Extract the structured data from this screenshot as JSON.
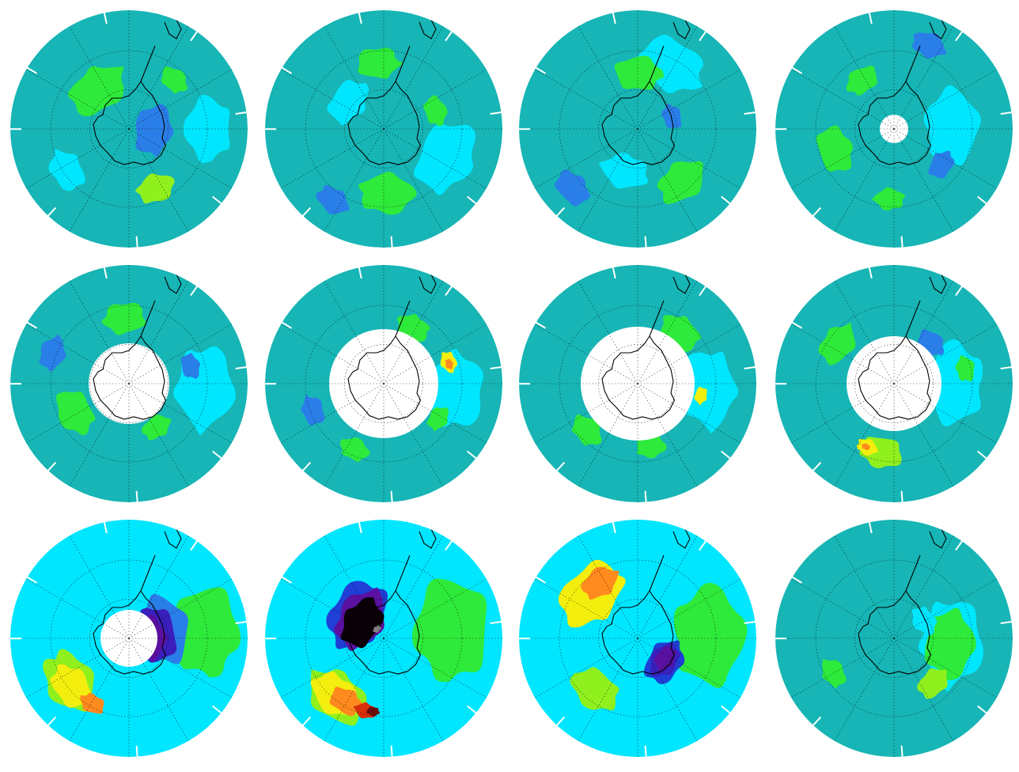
{
  "figure": {
    "rows": 3,
    "cols": 4,
    "projection": "south-polar-stereographic",
    "colors": {
      "teal": "#17b5b5",
      "cyan": "#00e6ff",
      "blue": "#2a7ee8",
      "deep_blue": "#1f3fd6",
      "indigo": "#3a1fbd",
      "purple": "#5a10a0",
      "black": "#0a0008",
      "gray": "#808080",
      "green": "#2eea3a",
      "lime": "#8ff01e",
      "yellow": "#f4ee0e",
      "orange": "#ff8a1e",
      "red": "#d8300a",
      "dark_red": "#6a0a0a",
      "polar_night": "#ffffff",
      "coast": "#000000"
    },
    "panels": [
      {
        "row": 1,
        "col": 1,
        "base": "teal",
        "polar_cap": 0,
        "features": [
          [
            "cyan",
            0.7,
            0.0,
            0.5,
            0.3
          ],
          [
            "green",
            0.45,
            -2.2,
            0.5,
            0.28
          ],
          [
            "blue",
            0.22,
            0.2,
            0.5,
            0.24
          ],
          [
            "lime",
            0.55,
            1.2,
            0.5,
            0.18
          ],
          [
            "cyan",
            0.62,
            2.6,
            0.5,
            0.2
          ],
          [
            "green",
            0.55,
            -0.8,
            0.5,
            0.14
          ]
        ]
      },
      {
        "row": 1,
        "col": 2,
        "base": "teal",
        "polar_cap": 0,
        "features": [
          [
            "cyan",
            0.6,
            0.5,
            0.5,
            0.35
          ],
          [
            "green",
            0.55,
            1.6,
            0.5,
            0.26
          ],
          [
            "green",
            0.55,
            -1.6,
            0.5,
            0.2
          ],
          [
            "green",
            0.45,
            -0.3,
            0.5,
            0.14
          ],
          [
            "blue",
            0.72,
            2.2,
            0.5,
            0.16
          ],
          [
            "cyan",
            0.35,
            -2.5,
            0.5,
            0.22
          ]
        ]
      },
      {
        "row": 1,
        "col": 3,
        "base": "teal",
        "polar_cap": 0,
        "features": [
          [
            "cyan",
            0.6,
            -1.0,
            0.5,
            0.32
          ],
          [
            "green",
            0.45,
            -1.5,
            0.5,
            0.22
          ],
          [
            "green",
            0.55,
            0.9,
            0.5,
            0.24
          ],
          [
            "blue",
            0.72,
            2.4,
            0.5,
            0.18
          ],
          [
            "cyan",
            0.35,
            1.8,
            0.5,
            0.22
          ],
          [
            "blue",
            0.3,
            -0.4,
            0.5,
            0.12
          ]
        ]
      },
      {
        "row": 1,
        "col": 4,
        "base": "teal",
        "polar_cap": 0.12,
        "features": [
          [
            "cyan",
            0.45,
            0.0,
            0.5,
            0.35
          ],
          [
            "green",
            0.5,
            2.8,
            0.5,
            0.22
          ],
          [
            "blue",
            0.75,
            -1.2,
            0.5,
            0.16
          ],
          [
            "green",
            0.48,
            -2.2,
            0.5,
            0.16
          ],
          [
            "blue",
            0.5,
            0.6,
            0.5,
            0.14
          ],
          [
            "green",
            0.6,
            1.6,
            0.5,
            0.14
          ]
        ]
      },
      {
        "row": 2,
        "col": 1,
        "base": "teal",
        "polar_cap": 0.34,
        "features": [
          [
            "cyan",
            0.6,
            0.0,
            0.5,
            0.38
          ],
          [
            "green",
            0.5,
            2.6,
            0.5,
            0.22
          ],
          [
            "green",
            0.55,
            -1.7,
            0.5,
            0.2
          ],
          [
            "blue",
            0.7,
            -2.8,
            0.5,
            0.16
          ],
          [
            "blue",
            0.55,
            -0.3,
            0.5,
            0.12
          ],
          [
            "green",
            0.45,
            1.0,
            0.5,
            0.14
          ]
        ]
      },
      {
        "row": 2,
        "col": 2,
        "base": "teal",
        "polar_cap": 0.46,
        "features": [
          [
            "cyan",
            0.6,
            0.0,
            0.5,
            0.36
          ],
          [
            "yellow",
            0.58,
            -0.35,
            0.5,
            0.1
          ],
          [
            "orange",
            0.58,
            -0.3,
            0.5,
            0.05
          ],
          [
            "green",
            0.55,
            -1.1,
            0.5,
            0.16
          ],
          [
            "green",
            0.62,
            2.0,
            0.5,
            0.14
          ],
          [
            "blue",
            0.65,
            2.8,
            0.5,
            0.14
          ],
          [
            "green",
            0.55,
            0.6,
            0.5,
            0.12
          ]
        ]
      },
      {
        "row": 2,
        "col": 3,
        "base": "teal",
        "polar_cap": 0.48,
        "features": [
          [
            "cyan",
            0.62,
            0.0,
            0.5,
            0.36
          ],
          [
            "green",
            0.58,
            -0.9,
            0.5,
            0.2
          ],
          [
            "green",
            0.6,
            2.4,
            0.5,
            0.16
          ],
          [
            "yellow",
            0.55,
            0.2,
            0.5,
            0.08
          ],
          [
            "green",
            0.55,
            1.4,
            0.5,
            0.14
          ]
        ]
      },
      {
        "row": 2,
        "col": 4,
        "base": "teal",
        "polar_cap": 0.4,
        "features": [
          [
            "cyan",
            0.55,
            0.0,
            0.5,
            0.38
          ],
          [
            "green",
            0.6,
            -2.5,
            0.5,
            0.2
          ],
          [
            "lime",
            0.6,
            1.8,
            0.5,
            0.2
          ],
          [
            "yellow",
            0.58,
            2.0,
            0.5,
            0.1
          ],
          [
            "orange",
            0.58,
            2.0,
            0.5,
            0.04
          ],
          [
            "blue",
            0.45,
            -0.8,
            0.5,
            0.14
          ],
          [
            "green",
            0.6,
            -0.2,
            0.5,
            0.12
          ]
        ]
      },
      {
        "row": 3,
        "col": 1,
        "base": "cyan",
        "polar_cap": 0.24,
        "features": [
          [
            "green",
            0.68,
            0.0,
            1,
            0.42
          ],
          [
            "lime",
            0.62,
            2.6,
            1,
            0.3
          ],
          [
            "yellow",
            0.62,
            2.5,
            1,
            0.22
          ],
          [
            "orange",
            0.62,
            2.1,
            1,
            0.12
          ],
          [
            "blue",
            0.26,
            -0.2,
            1,
            0.32
          ],
          [
            "indigo",
            0.2,
            -0.2,
            1,
            0.26
          ],
          [
            "purple",
            0.16,
            -0.2,
            1,
            0.2
          ]
        ]
      },
      {
        "row": 3,
        "col": 2,
        "base": "cyan",
        "polar_cap": 0,
        "features": [
          [
            "green",
            0.55,
            0.0,
            1,
            0.48
          ],
          [
            "lime",
            0.6,
            2.3,
            1,
            0.3
          ],
          [
            "yellow",
            0.6,
            2.3,
            1,
            0.24
          ],
          [
            "orange",
            0.6,
            2.1,
            1,
            0.16
          ],
          [
            "red",
            0.62,
            1.8,
            1,
            0.1
          ],
          [
            "dark_red",
            0.62,
            1.7,
            1,
            0.06
          ],
          [
            "deep_blue",
            0.3,
            -2.6,
            1,
            0.34
          ],
          [
            "purple",
            0.27,
            -2.6,
            1,
            0.29
          ],
          [
            "black",
            0.25,
            -2.6,
            1,
            0.24
          ],
          [
            "gray",
            0.1,
            -2.2,
            1,
            0.04
          ]
        ]
      },
      {
        "row": 3,
        "col": 3,
        "base": "cyan",
        "polar_cap": 0,
        "features": [
          [
            "green",
            0.55,
            0.0,
            1,
            0.46
          ],
          [
            "yellow",
            0.5,
            -2.4,
            1,
            0.34
          ],
          [
            "orange",
            0.55,
            -2.2,
            1,
            0.18
          ],
          [
            "lime",
            0.55,
            2.2,
            1,
            0.24
          ],
          [
            "deep_blue",
            0.3,
            0.6,
            1,
            0.22
          ],
          [
            "indigo",
            0.3,
            0.6,
            1,
            0.17
          ],
          [
            "purple",
            0.3,
            0.6,
            1,
            0.12
          ]
        ]
      },
      {
        "row": 3,
        "col": 4,
        "base": "teal",
        "polar_cap": 0,
        "features": [
          [
            "cyan",
            0.45,
            0.0,
            0.5,
            0.4
          ],
          [
            "green",
            0.45,
            0.0,
            0.5,
            0.32
          ],
          [
            "lime",
            0.5,
            0.8,
            0.5,
            0.16
          ],
          [
            "cyan",
            0.3,
            -0.6,
            0.5,
            0.14
          ],
          [
            "green",
            0.6,
            2.6,
            0.5,
            0.14
          ]
        ]
      }
    ]
  }
}
